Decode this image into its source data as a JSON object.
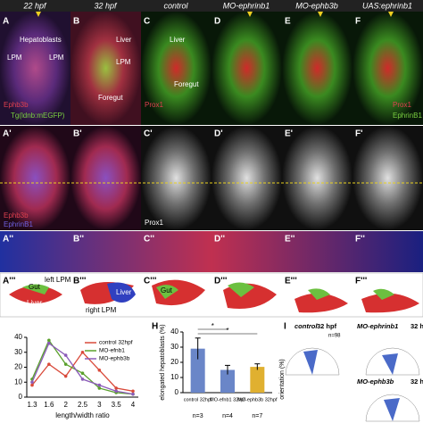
{
  "header": {
    "columns": [
      "22 hpf",
      "32 hpf",
      "control",
      "MO-ephrinb1",
      "MO-ephb3b",
      "UAS:ephrinb1"
    ]
  },
  "panel_labels": {
    "row1": [
      "A",
      "B",
      "C",
      "D",
      "E",
      "F"
    ],
    "row2": [
      "A'",
      "B'",
      "C'",
      "D'",
      "E'",
      "F'"
    ],
    "row3": [
      "A''",
      "B''",
      "C''",
      "D''",
      "E''",
      "F''"
    ],
    "row4": [
      "A'''",
      "B'''",
      "C'''",
      "D'''",
      "E'''",
      "F'''"
    ]
  },
  "annotations": {
    "a": [
      "Hepatoblasts",
      "LPM",
      "LPM",
      "Ephb3b",
      "Tg(ldnb:mEGFP)"
    ],
    "b": [
      "Liver",
      "LPM",
      "Foregut"
    ],
    "c": [
      "Liver",
      "Foregut",
      "Prox1"
    ],
    "f": [
      "Prox1",
      "EphrinB1"
    ],
    "row2": [
      "Ephb3b",
      "EphrinB1",
      "Prox1"
    ],
    "row4": [
      "Gut",
      "left LPM",
      "Liver",
      "right LPM",
      "Liver",
      "Gut"
    ]
  },
  "line_chart": {
    "type": "line",
    "x_label": "length/width ratio",
    "categories": [
      "1.3",
      "1.6",
      "2",
      "2.5",
      "3",
      "3.5",
      "4"
    ],
    "ylim": [
      0,
      40
    ],
    "yticks": [
      0,
      10,
      20,
      30,
      40
    ],
    "series": [
      {
        "name": "control 32hpf",
        "color": "#d94a3a",
        "values": [
          8,
          22,
          14,
          30,
          18,
          6,
          4
        ]
      },
      {
        "name": "MO-efnb1",
        "color": "#5aa02c",
        "values": [
          12,
          38,
          22,
          16,
          6,
          3,
          2
        ]
      },
      {
        "name": "MO-ephb3b",
        "color": "#8a5bb8",
        "values": [
          10,
          36,
          28,
          12,
          8,
          4,
          2
        ]
      }
    ]
  },
  "bar_chart": {
    "type": "bar",
    "panel": "H",
    "y_label": "elongated hepatoblasts (%)",
    "categories": [
      "control 32hpf",
      "MO-efnb1 32hpf",
      "MO-ephb3b 32hpf"
    ],
    "values": [
      29,
      15,
      17
    ],
    "errors": [
      7,
      3,
      2
    ],
    "n": [
      "n=3",
      "n=4",
      "n=7"
    ],
    "significance": [
      "*",
      "*"
    ],
    "ylim": [
      0,
      40
    ],
    "yticks": [
      0,
      10,
      20,
      30,
      40
    ],
    "colors": [
      "#6a86c8",
      "#6a86c8",
      "#e0b030"
    ]
  },
  "polar": {
    "panel": "I",
    "y_label": "orientation (%)",
    "titles": [
      "control",
      "32 hpf",
      "MO-ephrinb1",
      "32 h",
      "MO-ephb3b",
      "32 h"
    ],
    "n": "n=98"
  }
}
